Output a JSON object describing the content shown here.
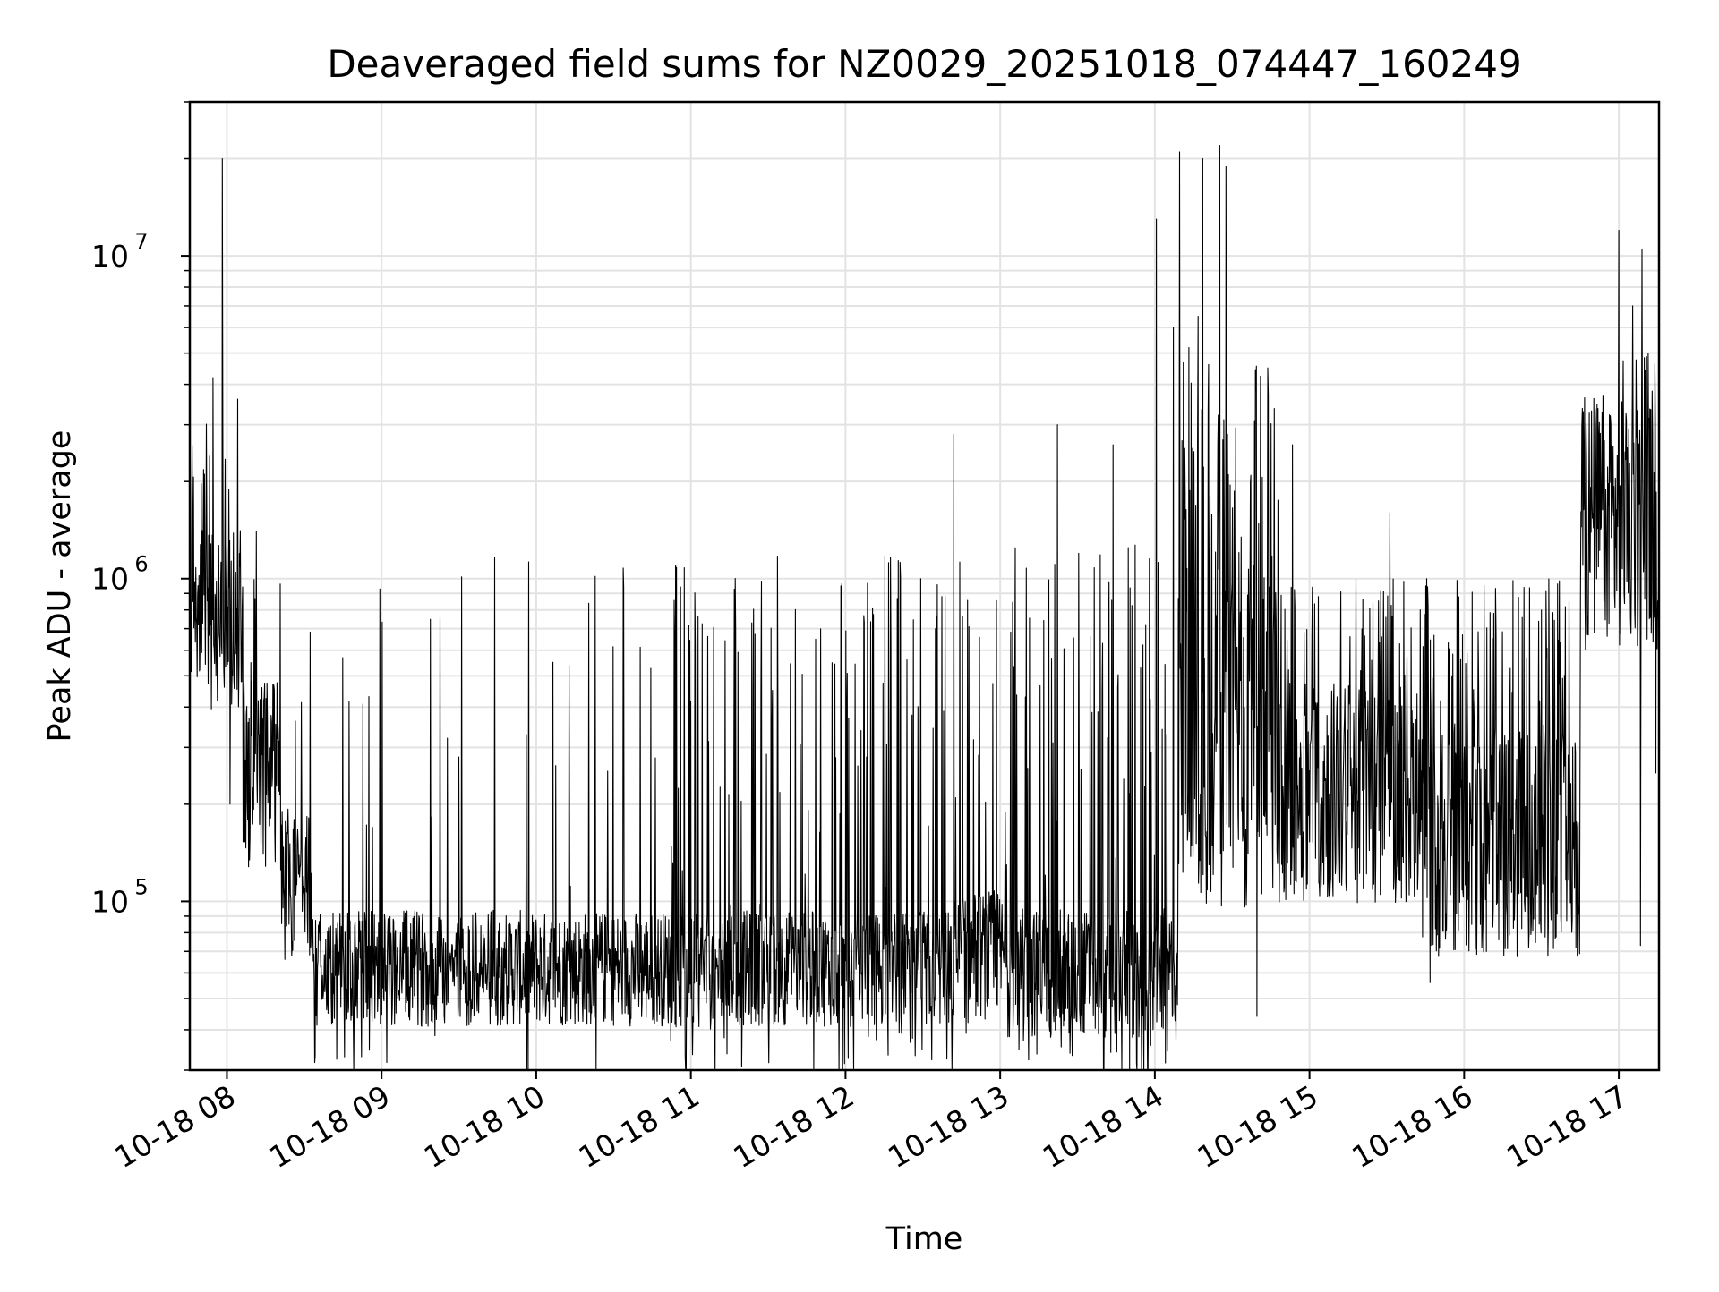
{
  "chart_data": {
    "type": "line",
    "title": "Deaveraged field sums for NZ0029_20251018_074447_160249",
    "xlabel": "Time",
    "ylabel": "Peak ADU - average",
    "yscale": "log",
    "ylim": [
      30000,
      30000000
    ],
    "xlim_hours": [
      7.76,
      17.26
    ],
    "grid": "both (major and minor)",
    "line_color": "#000000",
    "grid_color": "#e3e3e3",
    "x_ticks": [
      {
        "value": 8,
        "label": "10-18 08"
      },
      {
        "value": 9,
        "label": "10-18 09"
      },
      {
        "value": 10,
        "label": "10-18 10"
      },
      {
        "value": 11,
        "label": "10-18 11"
      },
      {
        "value": 12,
        "label": "10-18 12"
      },
      {
        "value": 13,
        "label": "10-18 13"
      },
      {
        "value": 14,
        "label": "10-18 14"
      },
      {
        "value": 15,
        "label": "10-18 15"
      },
      {
        "value": 16,
        "label": "10-18 16"
      },
      {
        "value": 17,
        "label": "10-18 17"
      }
    ],
    "y_ticks": [
      {
        "value": 100000,
        "base": "10",
        "exp": "5"
      },
      {
        "value": 1000000,
        "base": "10",
        "exp": "6"
      },
      {
        "value": 10000000,
        "base": "10",
        "exp": "7"
      }
    ],
    "series": [
      {
        "name": "Peak ADU - average",
        "segments": [
          {
            "t0": 7.76,
            "t1": 8.1,
            "base": 800000,
            "spread": 0.25,
            "spike_rate": 0.12,
            "spike_max": 3500000
          },
          {
            "t0": 8.1,
            "t1": 8.35,
            "base": 250000,
            "spread": 0.3,
            "spike_rate": 0.06,
            "spike_max": 1000000
          },
          {
            "t0": 8.35,
            "t1": 8.55,
            "base": 110000,
            "spread": 0.25,
            "spike_rate": 0.06,
            "spike_max": 900000
          },
          {
            "t0": 8.55,
            "t1": 10.9,
            "base": 62000,
            "spread": 0.18,
            "spike_rate": 0.05,
            "spike_max": 1200000
          },
          {
            "t0": 10.9,
            "t1": 11.3,
            "base": 60000,
            "spread": 0.18,
            "spike_rate": 0.16,
            "spike_max": 1200000
          },
          {
            "t0": 11.3,
            "t1": 12.7,
            "base": 62000,
            "spread": 0.18,
            "spike_rate": 0.13,
            "spike_max": 1200000
          },
          {
            "t0": 12.7,
            "t1": 13.05,
            "base": 68000,
            "spread": 0.2,
            "spike_rate": 0.08,
            "spike_max": 1200000
          },
          {
            "t0": 13.05,
            "t1": 14.15,
            "base": 60000,
            "spread": 0.2,
            "spike_rate": 0.16,
            "spike_max": 1300000
          },
          {
            "t0": 14.15,
            "t1": 14.8,
            "base": 300000,
            "spread": 0.5,
            "spike_rate": 0.3,
            "spike_max": 5000000
          },
          {
            "t0": 14.8,
            "t1": 15.7,
            "base": 220000,
            "spread": 0.35,
            "spike_rate": 0.15,
            "spike_max": 1000000
          },
          {
            "t0": 15.7,
            "t1": 16.75,
            "base": 150000,
            "spread": 0.35,
            "spike_rate": 0.2,
            "spike_max": 1000000
          },
          {
            "t0": 16.75,
            "t1": 17.26,
            "base": 1500000,
            "spread": 0.4,
            "spike_rate": 0.1,
            "spike_max": 5000000
          }
        ],
        "peaks": [
          {
            "t": 7.97,
            "y": 20000000
          },
          {
            "t": 7.91,
            "y": 4200000
          },
          {
            "t": 8.07,
            "y": 3600000
          },
          {
            "t": 8.19,
            "y": 1400000
          },
          {
            "t": 12.7,
            "y": 2800000
          },
          {
            "t": 13.37,
            "y": 3000000
          },
          {
            "t": 13.73,
            "y": 2600000
          },
          {
            "t": 14.01,
            "y": 13000000
          },
          {
            "t": 14.16,
            "y": 21000000
          },
          {
            "t": 14.31,
            "y": 20000000
          },
          {
            "t": 14.42,
            "y": 22000000
          },
          {
            "t": 14.46,
            "y": 19000000
          },
          {
            "t": 14.12,
            "y": 6000000
          },
          {
            "t": 14.28,
            "y": 6500000
          },
          {
            "t": 14.22,
            "y": 5200000
          },
          {
            "t": 14.73,
            "y": 4500000
          },
          {
            "t": 14.89,
            "y": 2600000
          },
          {
            "t": 15.52,
            "y": 1600000
          },
          {
            "t": 17.0,
            "y": 12000000
          },
          {
            "t": 17.15,
            "y": 10500000
          },
          {
            "t": 17.09,
            "y": 7000000
          },
          {
            "t": 17.19,
            "y": 5000000
          }
        ],
        "dips": [
          {
            "t": 8.02,
            "y": 200000
          },
          {
            "t": 12.78,
            "y": 39000
          },
          {
            "t": 13.15,
            "y": 37000
          },
          {
            "t": 10.87,
            "y": 37000
          },
          {
            "t": 14.66,
            "y": 44000
          },
          {
            "t": 15.78,
            "y": 56000
          },
          {
            "t": 17.14,
            "y": 73000
          },
          {
            "t": 17.24,
            "y": 250000
          }
        ]
      }
    ]
  }
}
